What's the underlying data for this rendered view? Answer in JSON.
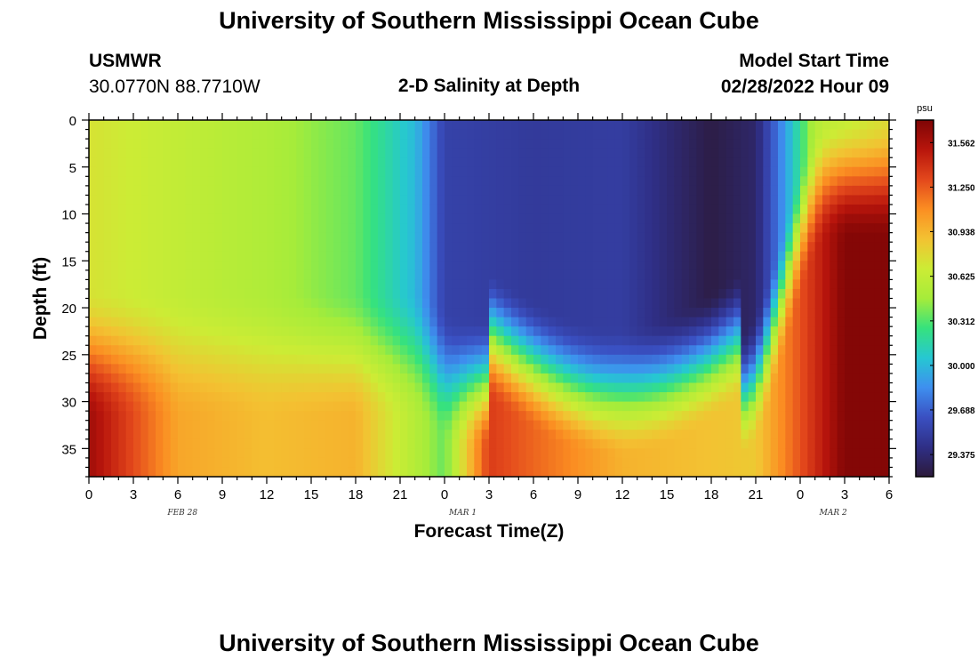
{
  "header": {
    "title": "University of Southern Mississippi Ocean Cube",
    "station": "USMWR",
    "coords": "30.0770N  88.7710W",
    "subtitle": "2-D Salinity at Depth",
    "model_start_label": "Model Start Time",
    "model_start_value": "02/28/2022 Hour 09"
  },
  "footer": {
    "title": "University of Southern Mississippi Ocean Cube"
  },
  "colors": {
    "colormap": [
      "#2c1a3b",
      "#2f2f86",
      "#3a50c2",
      "#3e8fef",
      "#26c7d2",
      "#36e27d",
      "#a6ec3a",
      "#ccec35",
      "#f3c232",
      "#fb8e22",
      "#e3481c",
      "#b8150c",
      "#7e0505"
    ]
  },
  "chart_data": {
    "type": "heatmap",
    "title": "2-D Salinity at Depth",
    "xlabel": "Forecast Time(Z)",
    "ylabel": "Depth (ft)",
    "x_tick_labels": [
      "0",
      "3",
      "6",
      "9",
      "12",
      "15",
      "18",
      "21",
      "0",
      "3",
      "6",
      "9",
      "12",
      "15",
      "18",
      "21",
      "0",
      "3",
      "6"
    ],
    "x_date_labels": [
      "FEB 28",
      "MAR 1",
      "MAR 2"
    ],
    "x_range_hours": [
      0,
      54
    ],
    "y_range_ft": [
      0,
      38
    ],
    "y_ticks": [
      0,
      5,
      10,
      15,
      20,
      25,
      30,
      35
    ],
    "y_inverted": true,
    "colorbar": {
      "unit": "psu",
      "range": [
        29.22,
        31.72
      ],
      "tick_values": [
        31.562,
        31.25,
        30.938,
        30.625,
        30.312,
        30.0,
        29.688,
        29.375
      ],
      "tick_labels": [
        "31.562",
        "31.250",
        "30.938",
        "30.625",
        "30.312",
        "30.000",
        "29.688",
        "29.375"
      ]
    },
    "grid": false,
    "surface_salinity_by_hour": [
      [
        0,
        30.73
      ],
      [
        6,
        30.62
      ],
      [
        12,
        30.52
      ],
      [
        18,
        30.35
      ],
      [
        22,
        30.0
      ],
      [
        24,
        29.55
      ],
      [
        30,
        29.5
      ],
      [
        36,
        29.52
      ],
      [
        42,
        29.25
      ],
      [
        45,
        29.35
      ],
      [
        47,
        29.9
      ],
      [
        49,
        30.55
      ],
      [
        54,
        30.75
      ]
    ],
    "bottom_salinity_by_hour": [
      [
        0,
        31.6
      ],
      [
        6,
        31.0
      ],
      [
        12,
        30.9
      ],
      [
        18,
        30.95
      ],
      [
        24,
        30.35
      ],
      [
        27,
        31.35
      ],
      [
        36,
        30.95
      ],
      [
        45,
        30.85
      ],
      [
        51,
        31.7
      ],
      [
        54,
        31.7
      ]
    ]
  }
}
